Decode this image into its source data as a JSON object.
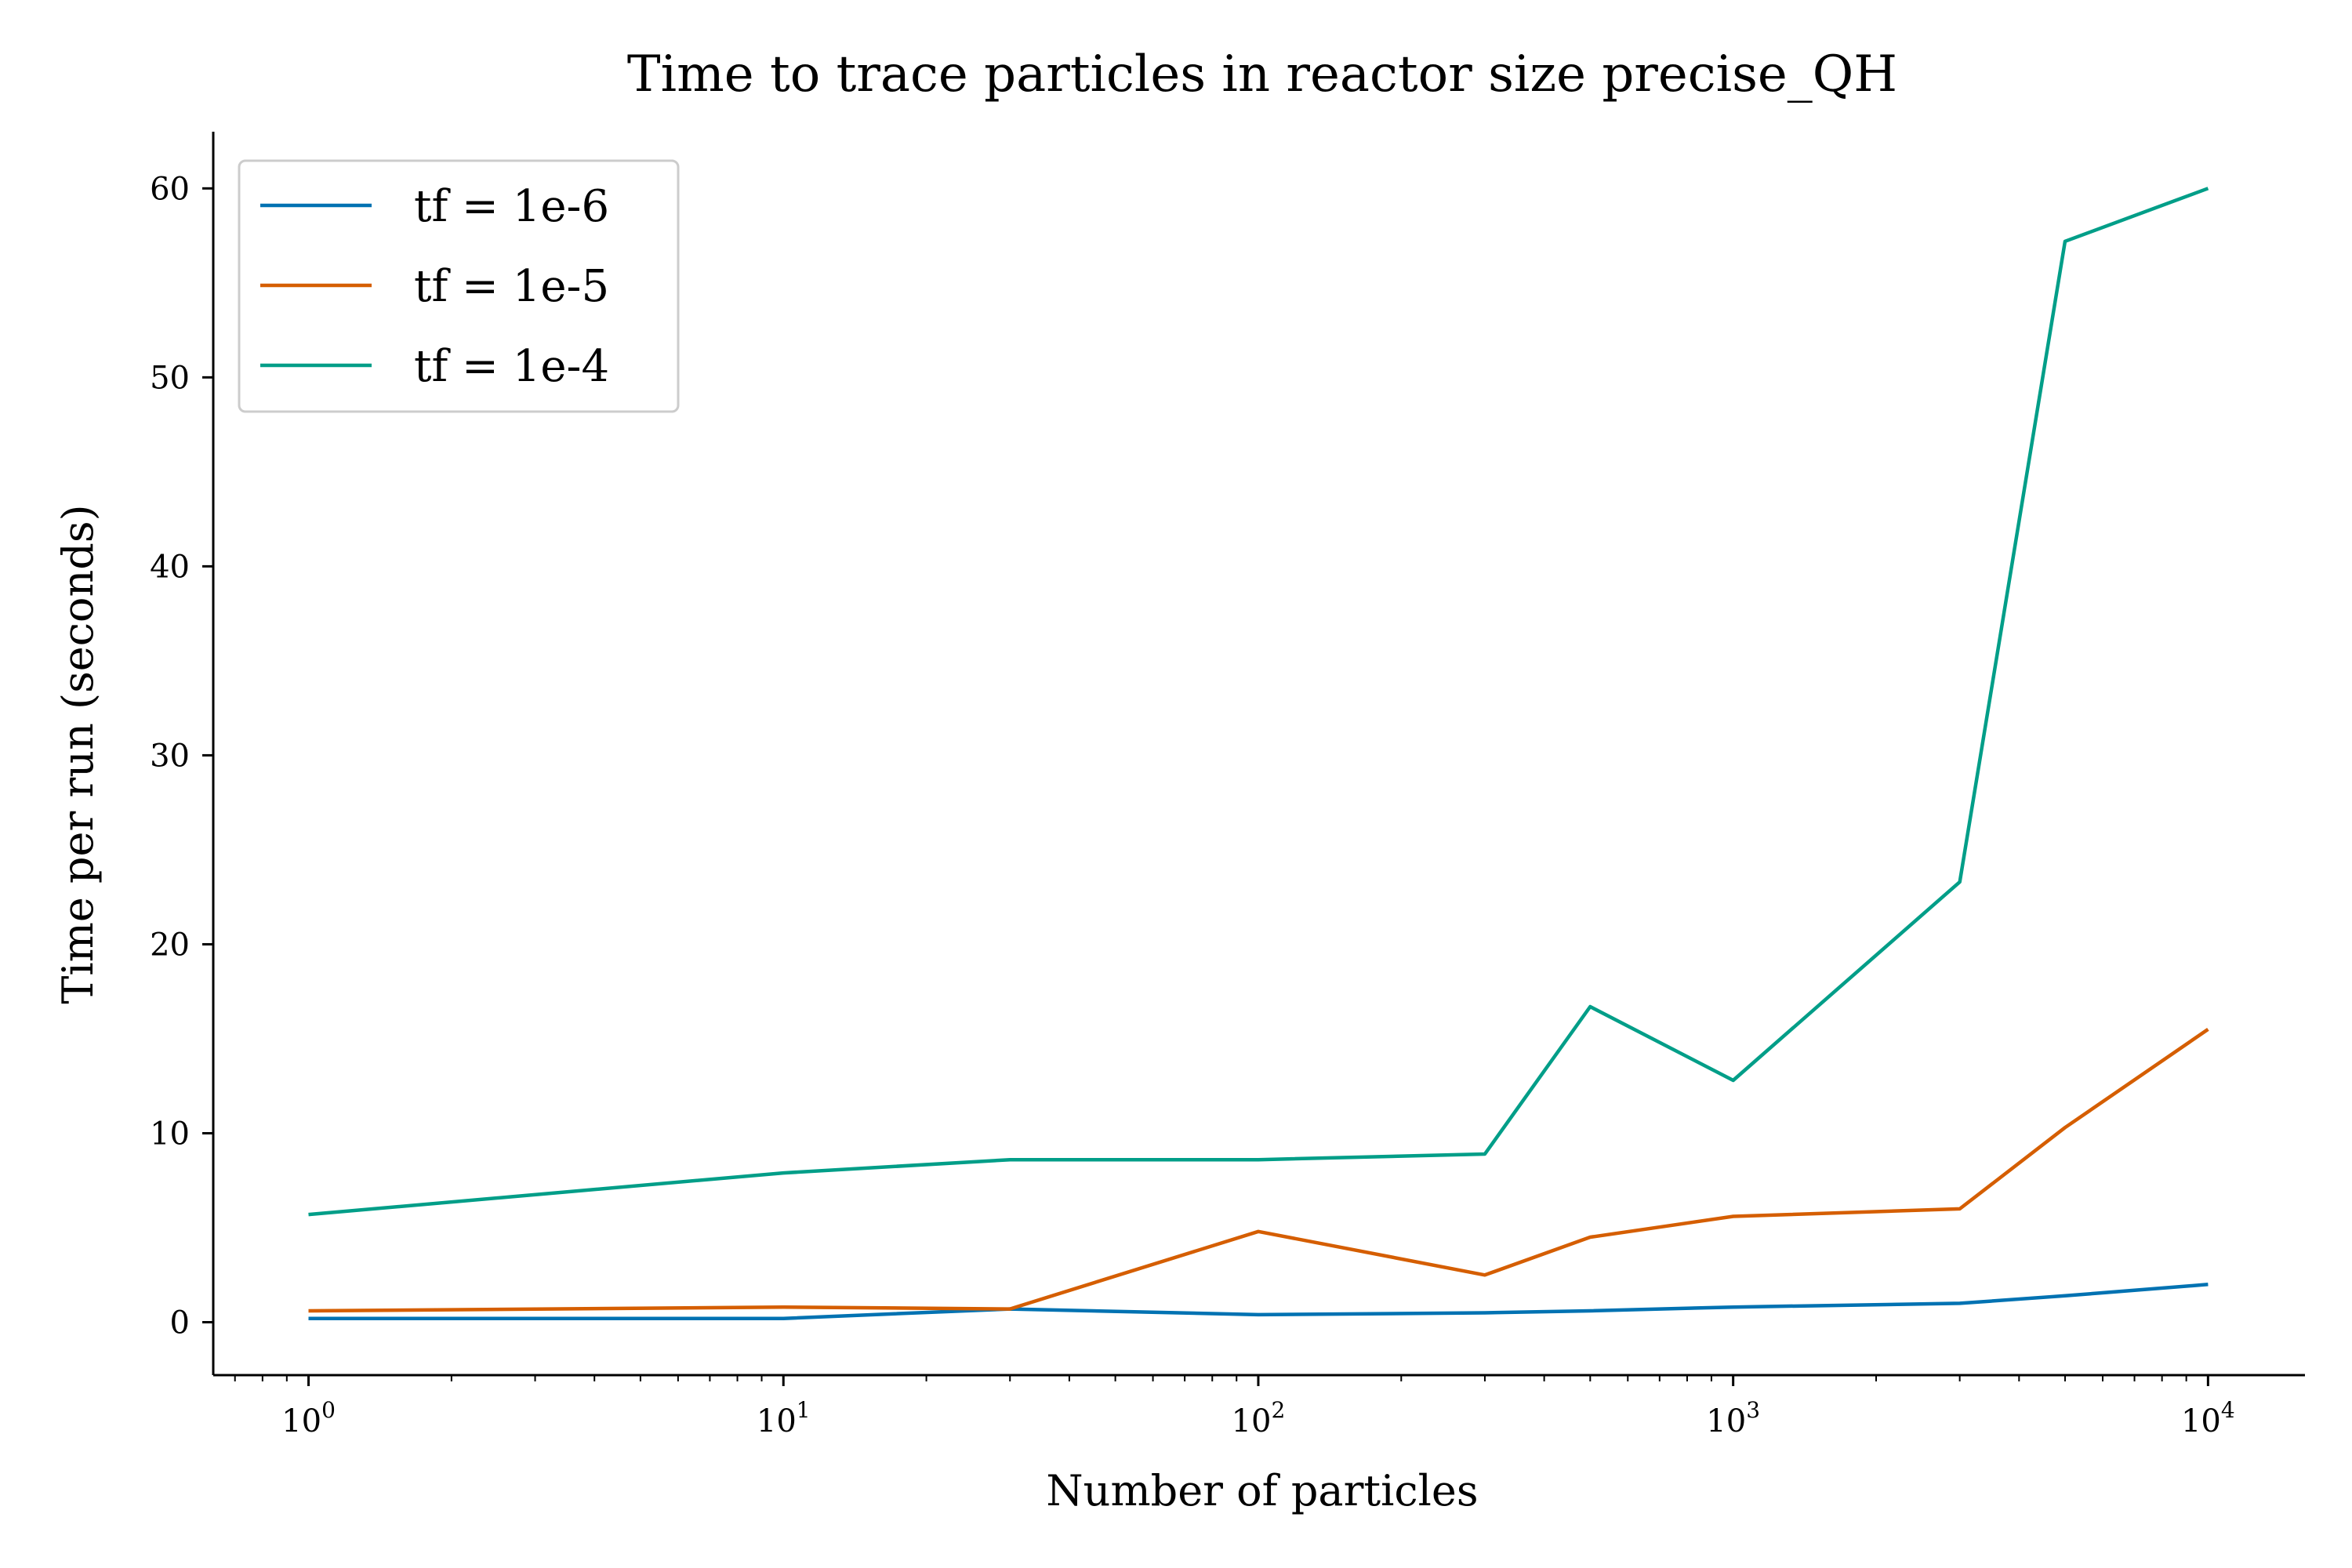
{
  "chart_data": {
    "type": "line",
    "title": "Time to trace particles in reactor size precise_QH",
    "xlabel": "Number of particles",
    "ylabel": "Time per run (seconds)",
    "xscale": "log",
    "xlim": [
      0.63,
      16000
    ],
    "ylim": [
      -2.8,
      63
    ],
    "grid": false,
    "legend_position": "top-left",
    "x_ticks": [
      {
        "value": 1,
        "base": "10",
        "exp": "0"
      },
      {
        "value": 10,
        "base": "10",
        "exp": "1"
      },
      {
        "value": 100,
        "base": "10",
        "exp": "2"
      },
      {
        "value": 1000,
        "base": "10",
        "exp": "3"
      },
      {
        "value": 10000,
        "base": "10",
        "exp": "4"
      }
    ],
    "y_ticks": [
      0,
      10,
      20,
      30,
      40,
      50,
      60
    ],
    "x": [
      1,
      10,
      30,
      100,
      300,
      500,
      1000,
      3000,
      5000,
      10000
    ],
    "series": [
      {
        "name": "tf = 1e-6",
        "color": "#0072b2",
        "values": [
          0.2,
          0.2,
          0.7,
          0.4,
          0.5,
          0.6,
          0.8,
          1.0,
          1.4,
          2.0
        ]
      },
      {
        "name": "tf = 1e-5",
        "color": "#d55e00",
        "values": [
          0.6,
          0.8,
          0.7,
          4.8,
          2.5,
          4.5,
          5.6,
          6.0,
          10.3,
          15.5
        ]
      },
      {
        "name": "tf = 1e-4",
        "color": "#009e88",
        "values": [
          5.7,
          7.9,
          8.6,
          8.6,
          8.9,
          16.7,
          12.8,
          23.3,
          57.2,
          60.0
        ]
      }
    ]
  }
}
